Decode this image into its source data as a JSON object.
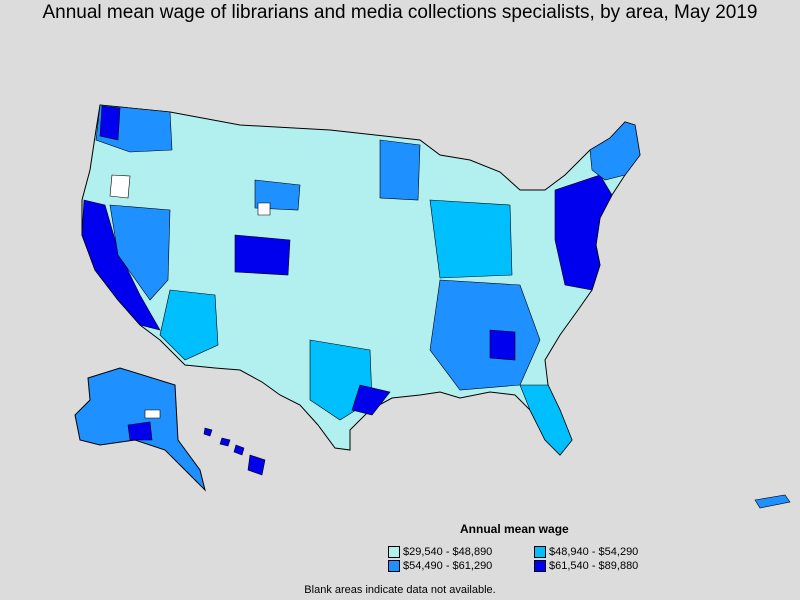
{
  "title": "Annual mean wage of librarians and media collections specialists, by area, May 2019",
  "legend": {
    "title": "Annual mean wage",
    "items": [
      {
        "label": "$29,540 - $48,890",
        "color": "#b2f0f0"
      },
      {
        "label": "$48,940 - $54,290",
        "color": "#00bfff"
      },
      {
        "label": "$54,490 - $61,290",
        "color": "#1e90ff"
      },
      {
        "label": "$61,540 - $89,880",
        "color": "#0000ee"
      }
    ]
  },
  "footnote": "Blank areas indicate data not available.",
  "colors": {
    "background": "#dcdcdc",
    "border": "#000000",
    "no_data": "#ffffff"
  }
}
